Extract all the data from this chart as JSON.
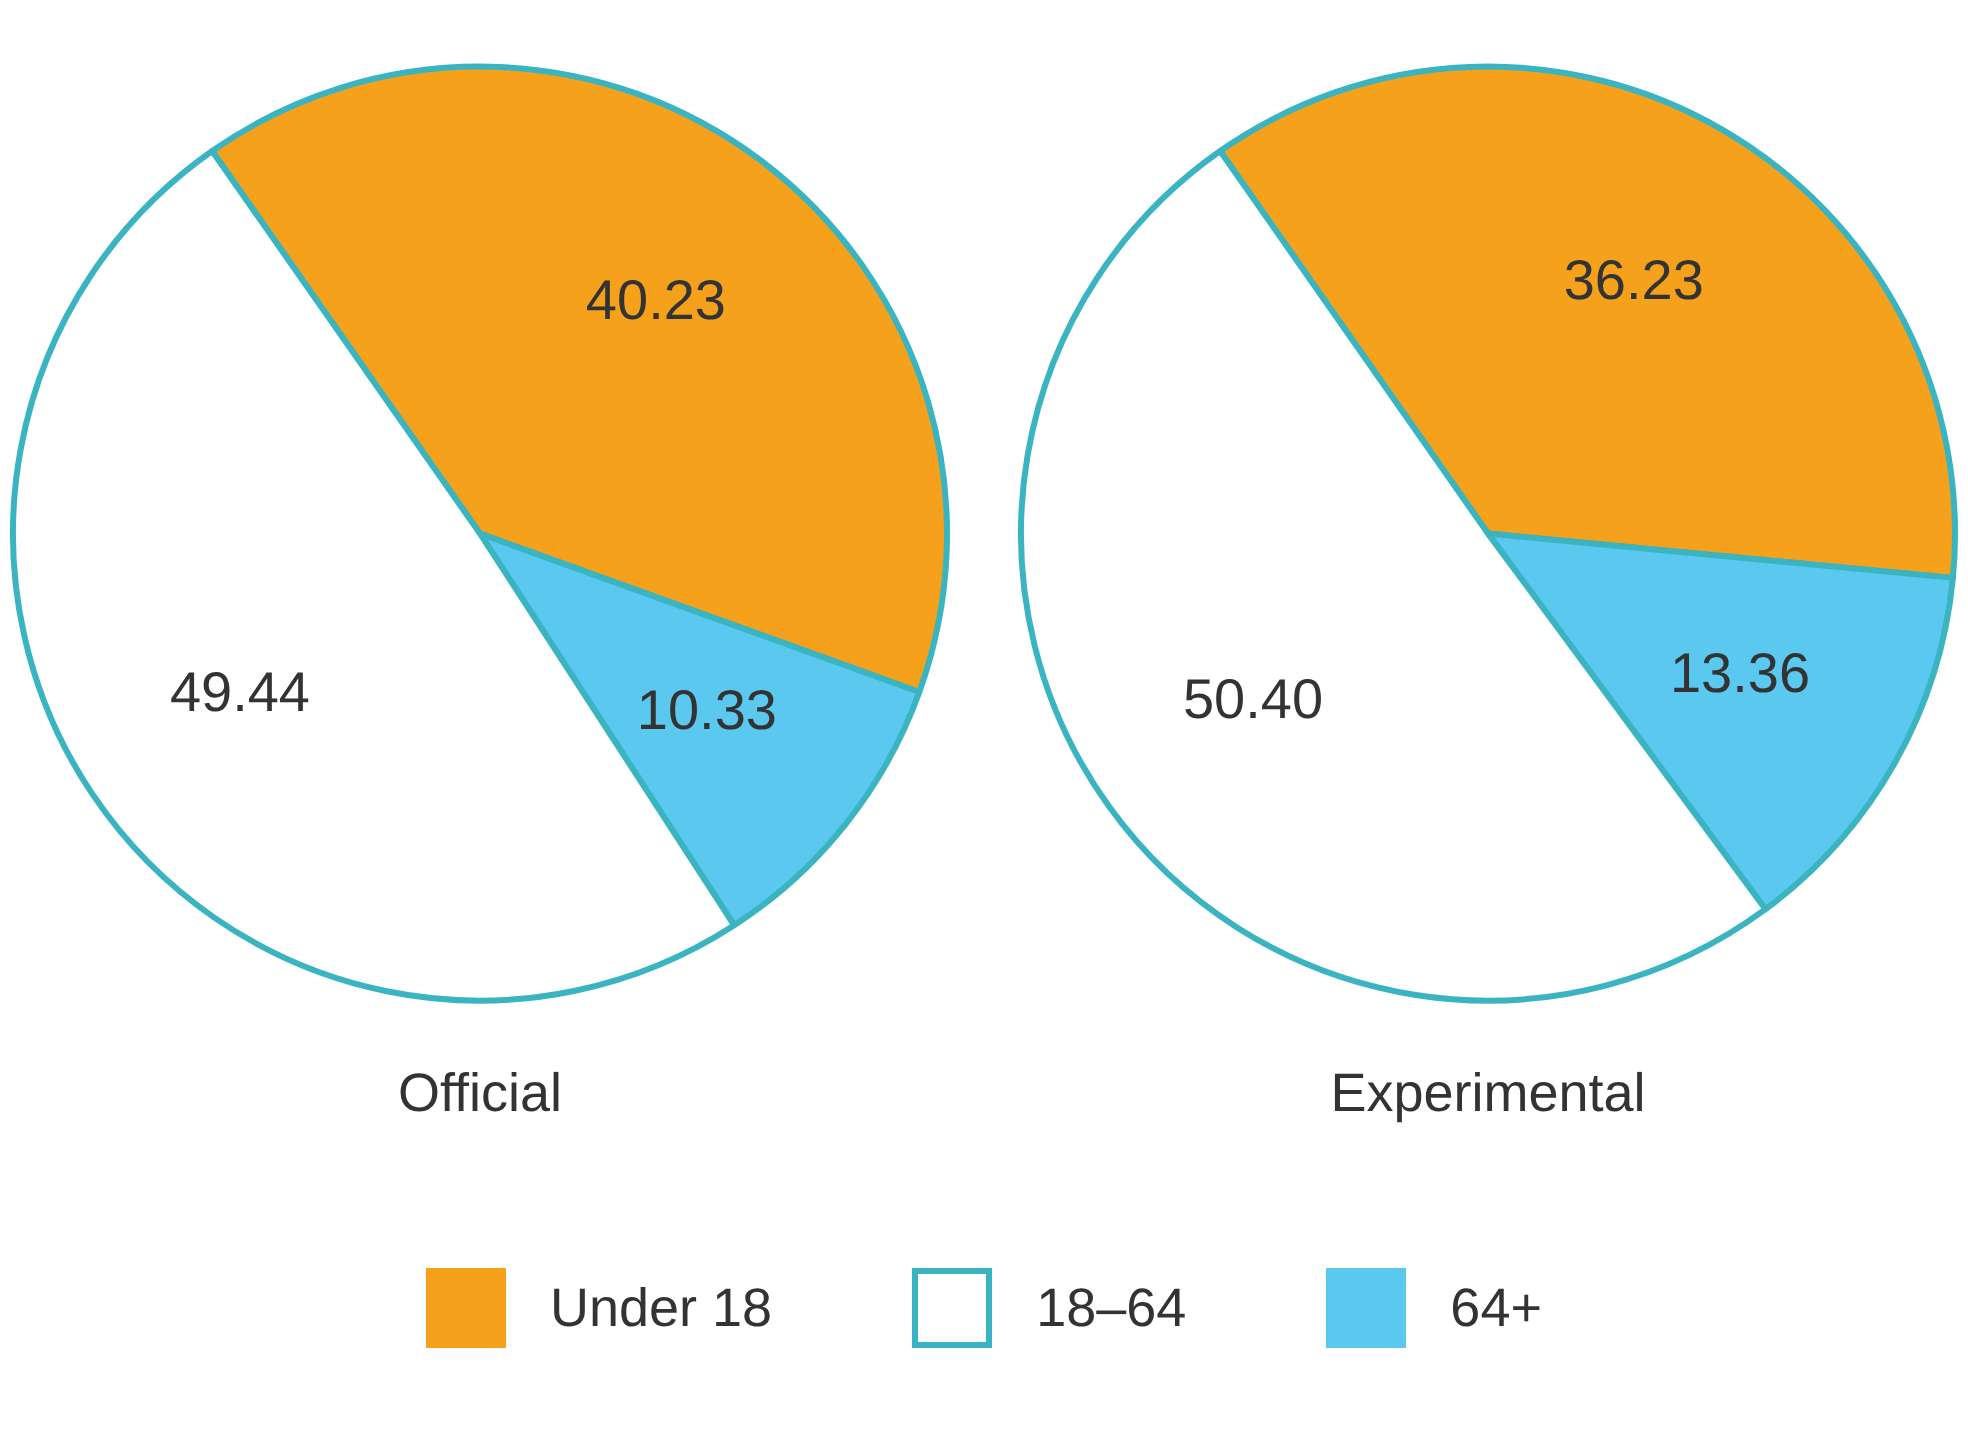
{
  "chart_data": {
    "type": "pie",
    "categories": [
      "Under 18",
      "18–64",
      "64+"
    ],
    "colors": [
      "#f5a11c",
      "#ffffff",
      "#5bc8ef"
    ],
    "legend": "bottom",
    "series": [
      {
        "name": "Official",
        "values": [
          40.23,
          49.44,
          10.33
        ],
        "value_labels": [
          "40.23",
          "49.44",
          "10.33"
        ]
      },
      {
        "name": "Experimental",
        "values": [
          36.23,
          50.4,
          13.36
        ],
        "value_labels": [
          "36.23",
          "50.40",
          "13.36"
        ]
      }
    ]
  }
}
